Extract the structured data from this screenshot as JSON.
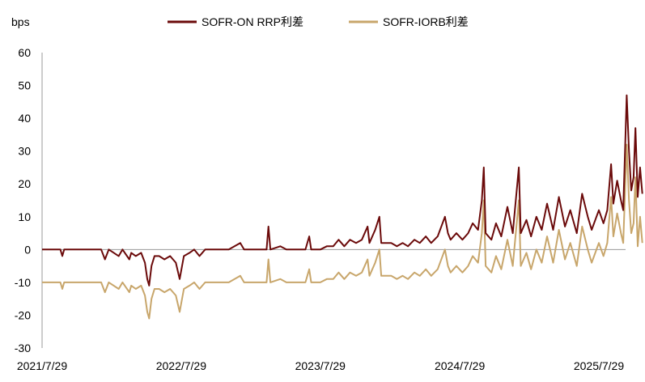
{
  "chart_data": {
    "type": "line",
    "ylabel": "bps",
    "ylim": [
      -30,
      60
    ],
    "yticks": [
      60,
      50,
      40,
      30,
      20,
      10,
      0,
      -10,
      -20,
      -30
    ],
    "xlim": [
      "2021-07-29",
      "2025-11-20"
    ],
    "xticks": [
      {
        "date": "2021-07-29",
        "label": "2021/7/29"
      },
      {
        "date": "2022-07-29",
        "label": "2022/7/29"
      },
      {
        "date": "2023-07-29",
        "label": "2023/7/29"
      },
      {
        "date": "2024-07-29",
        "label": "2024/7/29"
      },
      {
        "date": "2025-07-29",
        "label": "2025/7/29"
      }
    ],
    "grid": false,
    "legend_position": "top-center",
    "series": [
      {
        "name": "SOFR-ON RRP利差",
        "color": "#6b0a0a",
        "points": [
          [
            "2021-07-29",
            0
          ],
          [
            "2021-09-15",
            0
          ],
          [
            "2021-09-20",
            -2
          ],
          [
            "2021-09-25",
            0
          ],
          [
            "2021-12-31",
            0
          ],
          [
            "2022-01-10",
            -3
          ],
          [
            "2022-01-20",
            0
          ],
          [
            "2022-02-15",
            -2
          ],
          [
            "2022-02-25",
            0
          ],
          [
            "2022-03-15",
            -3
          ],
          [
            "2022-03-20",
            -1
          ],
          [
            "2022-04-01",
            -2
          ],
          [
            "2022-04-15",
            -1
          ],
          [
            "2022-04-25",
            -4
          ],
          [
            "2022-05-01",
            -9
          ],
          [
            "2022-05-06",
            -11
          ],
          [
            "2022-05-12",
            -5
          ],
          [
            "2022-05-20",
            -2
          ],
          [
            "2022-06-01",
            -2
          ],
          [
            "2022-06-15",
            -3
          ],
          [
            "2022-06-30",
            -2
          ],
          [
            "2022-07-15",
            -4
          ],
          [
            "2022-07-25",
            -9
          ],
          [
            "2022-08-05",
            -2
          ],
          [
            "2022-08-20",
            -1
          ],
          [
            "2022-09-01",
            0
          ],
          [
            "2022-09-15",
            -2
          ],
          [
            "2022-09-30",
            0
          ],
          [
            "2022-10-15",
            0
          ],
          [
            "2022-10-31",
            0
          ],
          [
            "2022-11-15",
            0
          ],
          [
            "2022-12-01",
            0
          ],
          [
            "2022-12-31",
            2
          ],
          [
            "2023-01-10",
            0
          ],
          [
            "2023-02-15",
            0
          ],
          [
            "2023-03-10",
            0
          ],
          [
            "2023-03-15",
            7
          ],
          [
            "2023-03-20",
            0
          ],
          [
            "2023-04-15",
            1
          ],
          [
            "2023-05-01",
            0
          ],
          [
            "2023-06-01",
            0
          ],
          [
            "2023-06-20",
            0
          ],
          [
            "2023-06-30",
            4
          ],
          [
            "2023-07-05",
            0
          ],
          [
            "2023-07-29",
            0
          ],
          [
            "2023-08-15",
            1
          ],
          [
            "2023-09-01",
            1
          ],
          [
            "2023-09-15",
            3
          ],
          [
            "2023-09-30",
            1
          ],
          [
            "2023-10-15",
            3
          ],
          [
            "2023-10-31",
            2
          ],
          [
            "2023-11-15",
            3
          ],
          [
            "2023-11-30",
            7
          ],
          [
            "2023-12-05",
            2
          ],
          [
            "2023-12-20",
            6
          ],
          [
            "2023-12-31",
            10
          ],
          [
            "2024-01-05",
            2
          ],
          [
            "2024-01-31",
            2
          ],
          [
            "2024-02-15",
            1
          ],
          [
            "2024-03-01",
            2
          ],
          [
            "2024-03-15",
            1
          ],
          [
            "2024-04-01",
            3
          ],
          [
            "2024-04-15",
            2
          ],
          [
            "2024-05-01",
            4
          ],
          [
            "2024-05-15",
            2
          ],
          [
            "2024-06-01",
            4
          ],
          [
            "2024-06-20",
            10
          ],
          [
            "2024-06-28",
            5
          ],
          [
            "2024-07-05",
            3
          ],
          [
            "2024-07-20",
            5
          ],
          [
            "2024-08-05",
            3
          ],
          [
            "2024-08-20",
            5
          ],
          [
            "2024-09-01",
            8
          ],
          [
            "2024-09-15",
            6
          ],
          [
            "2024-09-25",
            15
          ],
          [
            "2024-09-30",
            25
          ],
          [
            "2024-10-05",
            5
          ],
          [
            "2024-10-20",
            3
          ],
          [
            "2024-11-01",
            8
          ],
          [
            "2024-11-15",
            4
          ],
          [
            "2024-12-01",
            13
          ],
          [
            "2024-12-15",
            5
          ],
          [
            "2024-12-31",
            25
          ],
          [
            "2025-01-05",
            5
          ],
          [
            "2025-01-20",
            9
          ],
          [
            "2025-02-01",
            4
          ],
          [
            "2025-02-15",
            10
          ],
          [
            "2025-03-01",
            6
          ],
          [
            "2025-03-15",
            14
          ],
          [
            "2025-03-31",
            6
          ],
          [
            "2025-04-15",
            16
          ],
          [
            "2025-05-01",
            7
          ],
          [
            "2025-05-15",
            12
          ],
          [
            "2025-06-01",
            5
          ],
          [
            "2025-06-15",
            17
          ],
          [
            "2025-06-30",
            10
          ],
          [
            "2025-07-10",
            6
          ],
          [
            "2025-07-29",
            12
          ],
          [
            "2025-08-10",
            8
          ],
          [
            "2025-08-20",
            12
          ],
          [
            "2025-08-30",
            26
          ],
          [
            "2025-09-05",
            14
          ],
          [
            "2025-09-15",
            21
          ],
          [
            "2025-09-25",
            15
          ],
          [
            "2025-10-01",
            12
          ],
          [
            "2025-10-10",
            47
          ],
          [
            "2025-10-16",
            30
          ],
          [
            "2025-10-22",
            18
          ],
          [
            "2025-10-28",
            22
          ],
          [
            "2025-11-02",
            37
          ],
          [
            "2025-11-08",
            16
          ],
          [
            "2025-11-14",
            25
          ],
          [
            "2025-11-20",
            17
          ]
        ]
      },
      {
        "name": "SOFR-IORB利差",
        "color": "#c8a66b",
        "points": [
          [
            "2021-07-29",
            -10
          ],
          [
            "2021-09-15",
            -10
          ],
          [
            "2021-09-20",
            -12
          ],
          [
            "2021-09-25",
            -10
          ],
          [
            "2021-12-31",
            -10
          ],
          [
            "2022-01-10",
            -13
          ],
          [
            "2022-01-20",
            -10
          ],
          [
            "2022-02-15",
            -12
          ],
          [
            "2022-02-25",
            -10
          ],
          [
            "2022-03-15",
            -13
          ],
          [
            "2022-03-20",
            -11
          ],
          [
            "2022-04-01",
            -12
          ],
          [
            "2022-04-15",
            -11
          ],
          [
            "2022-04-25",
            -14
          ],
          [
            "2022-05-01",
            -19
          ],
          [
            "2022-05-06",
            -21
          ],
          [
            "2022-05-12",
            -15
          ],
          [
            "2022-05-20",
            -12
          ],
          [
            "2022-06-01",
            -12
          ],
          [
            "2022-06-15",
            -13
          ],
          [
            "2022-06-30",
            -12
          ],
          [
            "2022-07-15",
            -14
          ],
          [
            "2022-07-25",
            -19
          ],
          [
            "2022-08-05",
            -12
          ],
          [
            "2022-08-20",
            -11
          ],
          [
            "2022-09-01",
            -10
          ],
          [
            "2022-09-15",
            -12
          ],
          [
            "2022-09-30",
            -10
          ],
          [
            "2022-10-15",
            -10
          ],
          [
            "2022-10-31",
            -10
          ],
          [
            "2022-11-15",
            -10
          ],
          [
            "2022-12-01",
            -10
          ],
          [
            "2022-12-31",
            -8
          ],
          [
            "2023-01-10",
            -10
          ],
          [
            "2023-02-15",
            -10
          ],
          [
            "2023-03-10",
            -10
          ],
          [
            "2023-03-15",
            -3
          ],
          [
            "2023-03-20",
            -10
          ],
          [
            "2023-04-15",
            -9
          ],
          [
            "2023-05-01",
            -10
          ],
          [
            "2023-06-01",
            -10
          ],
          [
            "2023-06-20",
            -10
          ],
          [
            "2023-06-30",
            -6
          ],
          [
            "2023-07-05",
            -10
          ],
          [
            "2023-07-29",
            -10
          ],
          [
            "2023-08-15",
            -9
          ],
          [
            "2023-09-01",
            -9
          ],
          [
            "2023-09-15",
            -7
          ],
          [
            "2023-09-30",
            -9
          ],
          [
            "2023-10-15",
            -7
          ],
          [
            "2023-10-31",
            -8
          ],
          [
            "2023-11-15",
            -7
          ],
          [
            "2023-11-30",
            -3
          ],
          [
            "2023-12-05",
            -8
          ],
          [
            "2023-12-20",
            -4
          ],
          [
            "2023-12-31",
            0
          ],
          [
            "2024-01-05",
            -8
          ],
          [
            "2024-01-31",
            -8
          ],
          [
            "2024-02-15",
            -9
          ],
          [
            "2024-03-01",
            -8
          ],
          [
            "2024-03-15",
            -9
          ],
          [
            "2024-04-01",
            -7
          ],
          [
            "2024-04-15",
            -8
          ],
          [
            "2024-05-01",
            -6
          ],
          [
            "2024-05-15",
            -8
          ],
          [
            "2024-06-01",
            -6
          ],
          [
            "2024-06-20",
            0
          ],
          [
            "2024-06-28",
            -5
          ],
          [
            "2024-07-05",
            -7
          ],
          [
            "2024-07-20",
            -5
          ],
          [
            "2024-08-05",
            -7
          ],
          [
            "2024-08-20",
            -5
          ],
          [
            "2024-09-01",
            -2
          ],
          [
            "2024-09-15",
            -4
          ],
          [
            "2024-09-25",
            5
          ],
          [
            "2024-09-30",
            15
          ],
          [
            "2024-10-05",
            -5
          ],
          [
            "2024-10-20",
            -7
          ],
          [
            "2024-11-01",
            -2
          ],
          [
            "2024-11-15",
            -6
          ],
          [
            "2024-12-01",
            3
          ],
          [
            "2024-12-15",
            -5
          ],
          [
            "2024-12-31",
            15
          ],
          [
            "2025-01-05",
            -5
          ],
          [
            "2025-01-20",
            -1
          ],
          [
            "2025-02-01",
            -6
          ],
          [
            "2025-02-15",
            0
          ],
          [
            "2025-03-01",
            -4
          ],
          [
            "2025-03-15",
            4
          ],
          [
            "2025-03-31",
            -4
          ],
          [
            "2025-04-15",
            6
          ],
          [
            "2025-05-01",
            -3
          ],
          [
            "2025-05-15",
            2
          ],
          [
            "2025-06-01",
            -5
          ],
          [
            "2025-06-15",
            7
          ],
          [
            "2025-06-30",
            0
          ],
          [
            "2025-07-10",
            -4
          ],
          [
            "2025-07-29",
            2
          ],
          [
            "2025-08-10",
            -2
          ],
          [
            "2025-08-20",
            2
          ],
          [
            "2025-08-30",
            16
          ],
          [
            "2025-09-05",
            4
          ],
          [
            "2025-09-15",
            11
          ],
          [
            "2025-09-25",
            5
          ],
          [
            "2025-10-01",
            2
          ],
          [
            "2025-10-10",
            32
          ],
          [
            "2025-10-16",
            15
          ],
          [
            "2025-10-22",
            5
          ],
          [
            "2025-10-28",
            8
          ],
          [
            "2025-11-02",
            22
          ],
          [
            "2025-11-08",
            1
          ],
          [
            "2025-11-14",
            10
          ],
          [
            "2025-11-20",
            2
          ]
        ]
      }
    ]
  }
}
